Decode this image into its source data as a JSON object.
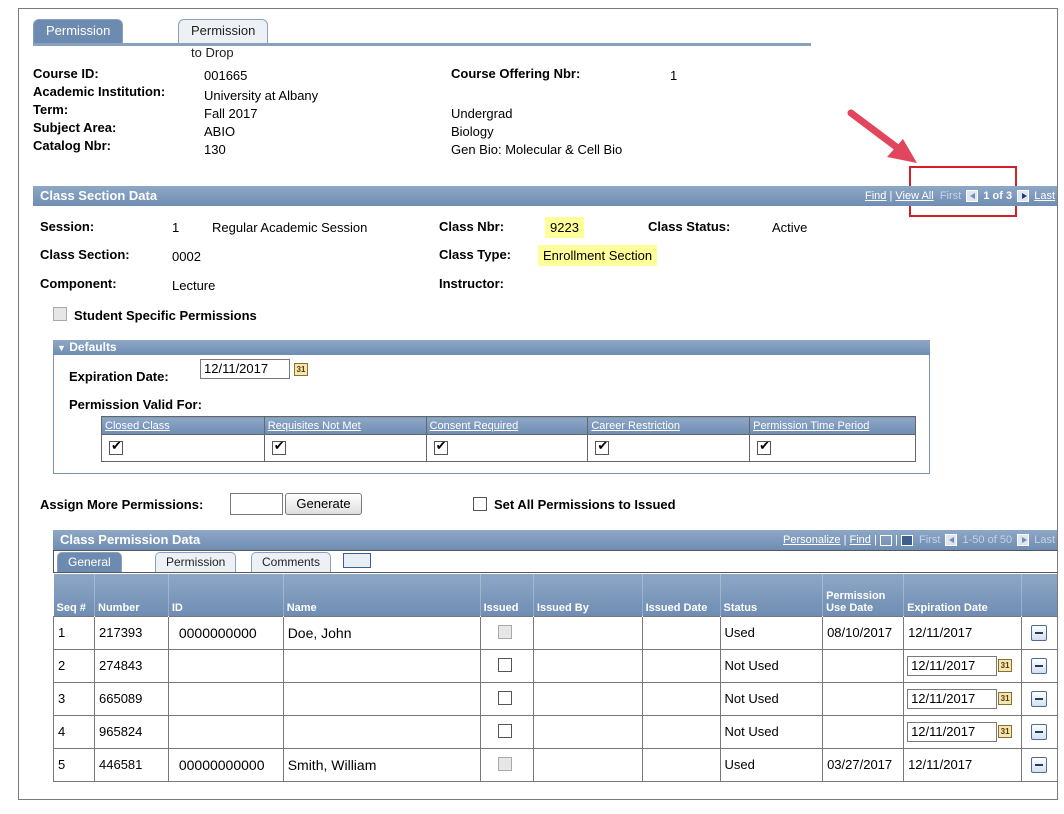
{
  "tabs": [
    "Permission to Add",
    "Permission to Drop"
  ],
  "course": {
    "course_id_label": "Course ID:",
    "course_id": "001665",
    "institution_label": "Academic Institution:",
    "institution": "University at Albany",
    "term_label": "Term:",
    "term": "Fall 2017",
    "career": "Undergrad",
    "subject_label": "Subject Area:",
    "subject": "ABIO",
    "subject_desc": "Biology",
    "catalog_label": "Catalog Nbr:",
    "catalog": "130",
    "catalog_desc": "Gen Bio: Molecular & Cell Bio",
    "offering_label": "Course Offering Nbr:",
    "offering": "1"
  },
  "class_section": {
    "title": "Class Section Data",
    "nav": {
      "find": "Find",
      "view_all": "View All",
      "first": "First",
      "count": "1 of 3",
      "last": "Last"
    },
    "session_label": "Session:",
    "session_num": "1",
    "session_desc": "Regular Academic Session",
    "class_nbr_label": "Class Nbr:",
    "class_nbr": "9223",
    "status_label": "Class Status:",
    "status": "Active",
    "section_label": "Class Section:",
    "section": "0002",
    "type_label": "Class Type:",
    "type": "Enrollment Section",
    "component_label": "Component:",
    "component": "Lecture",
    "instructor_label": "Instructor:",
    "student_specific": "Student Specific Permissions"
  },
  "defaults": {
    "title": "Defaults",
    "expiration_label": "Expiration Date:",
    "expiration_value": "12/11/2017",
    "valid_for_label": "Permission Valid For:",
    "columns": [
      "Closed Class",
      "Requisites Not Met",
      "Consent Required",
      "Career Restriction",
      "Permission Time Period"
    ]
  },
  "assign": {
    "label": "Assign More Permissions:",
    "generate": "Generate",
    "set_all": "Set All Permissions to Issued"
  },
  "perm_data": {
    "title": "Class Permission Data",
    "nav": {
      "personalize": "Personalize",
      "find": "Find",
      "first": "First",
      "count": "1-50 of 50",
      "last": "Last"
    },
    "sub_tabs": [
      "General Info",
      "Permission",
      "Comments"
    ],
    "columns": [
      "Seq #",
      "Number",
      "ID",
      "Name",
      "Issued",
      "Issued By",
      "Issued Date",
      "Status",
      "Permission Use Date",
      "Expiration Date"
    ],
    "rows": [
      {
        "seq": "1",
        "number": "217393",
        "id": "0000000000",
        "name": "Doe, John",
        "status": "Used",
        "use_date": "08/10/2017",
        "exp": "12/11/2017"
      },
      {
        "seq": "2",
        "number": "274843",
        "id": "",
        "name": "",
        "status": "Not Used",
        "use_date": "",
        "exp": "12/11/2017"
      },
      {
        "seq": "3",
        "number": "665089",
        "id": "",
        "name": "",
        "status": "Not Used",
        "use_date": "",
        "exp": "12/11/2017"
      },
      {
        "seq": "4",
        "number": "965824",
        "id": "",
        "name": "",
        "status": "Not Used",
        "use_date": "",
        "exp": "12/11/2017"
      },
      {
        "seq": "5",
        "number": "446581",
        "id": "00000000000",
        "name": "Smith, William",
        "status": "Used",
        "use_date": "03/27/2017",
        "exp": "12/11/2017"
      }
    ]
  },
  "colors": {
    "header_blue": "#6f8db3",
    "highlight": "#ffff99",
    "callout_red": "#d0202a",
    "arrow": "#e2465c"
  },
  "calendar_icon_text": "31"
}
